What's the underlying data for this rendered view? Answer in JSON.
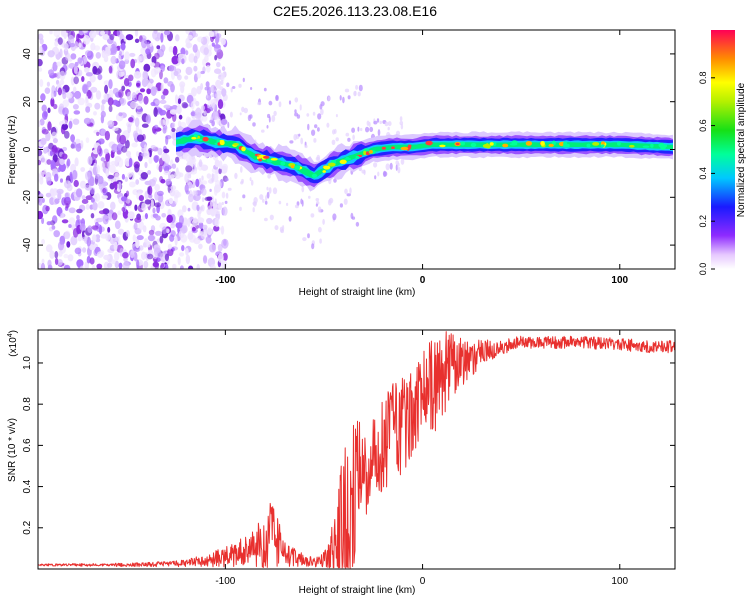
{
  "title": "C2E5.2026.113.23.08.E16",
  "chart_data": [
    {
      "type": "heatmap",
      "name": "spectrogram",
      "xlabel": "Height of straight line (km)",
      "ylabel": "Frequency (Hz)",
      "xlim": [
        -195,
        128
      ],
      "ylim": [
        -50,
        50
      ],
      "xticks": [
        -100,
        0,
        100
      ],
      "xtick_labels": [
        "-100",
        "0",
        "100"
      ],
      "yticks": [
        -40,
        -20,
        0,
        20,
        40
      ],
      "ytick_labels": [
        "-40",
        "-20",
        "0",
        "20",
        "40"
      ],
      "signal_track": {
        "x": [
          -125,
          -115,
          -105,
          -95,
          -85,
          -75,
          -65,
          -55,
          -45,
          -35,
          -25,
          -15,
          -5,
          5,
          20,
          40,
          60,
          80,
          100,
          128
        ],
        "frequency": [
          3,
          5,
          3,
          2,
          -3,
          -5,
          -7,
          -11,
          -6,
          -3,
          0,
          1,
          1,
          2,
          2,
          2,
          2,
          2,
          2,
          1
        ]
      },
      "noise_region_x": [
        -195,
        -112
      ],
      "colorbar": {
        "label": "Normalized spectral amplitude",
        "range": [
          0,
          1
        ],
        "ticks": [
          0.0,
          0.2,
          0.4,
          0.6,
          0.8
        ],
        "tick_labels": [
          "0.0",
          "0.2",
          "0.4",
          "0.6",
          "0.8"
        ]
      }
    },
    {
      "type": "line",
      "name": "snr",
      "xlabel": "Height of straight line (km)",
      "ylabel": "SNR (10 * v/v)",
      "scale_label": "(x10",
      "scale_exponent": "4",
      "xlim": [
        -195,
        128
      ],
      "ylim": [
        0,
        1.16
      ],
      "xticks": [
        -100,
        0,
        100
      ],
      "xtick_labels": [
        "-100",
        "0",
        "100"
      ],
      "yticks": [
        0.2,
        0.4,
        0.6,
        0.8,
        1.0
      ],
      "ytick_labels": [
        "0.2",
        "0.4",
        "0.6",
        "0.8",
        "1.0"
      ],
      "series_color": "#e8302e",
      "envelope": {
        "x": [
          -195,
          -150,
          -125,
          -110,
          -95,
          -85,
          -78,
          -74,
          -70,
          -60,
          -52,
          -48,
          -44,
          -40,
          -36,
          -32,
          -28,
          -24,
          -20,
          -16,
          -12,
          -8,
          -4,
          0,
          6,
          12,
          20,
          30,
          40,
          50,
          60,
          80,
          100,
          115,
          128
        ],
        "base": [
          0.02,
          0.02,
          0.025,
          0.04,
          0.07,
          0.1,
          0.14,
          0.12,
          0.07,
          0.04,
          0.03,
          0.05,
          0.08,
          0.15,
          0.3,
          0.42,
          0.48,
          0.55,
          0.6,
          0.65,
          0.68,
          0.72,
          0.78,
          0.85,
          0.9,
          0.95,
          1.0,
          1.05,
          1.08,
          1.1,
          1.1,
          1.1,
          1.09,
          1.08,
          1.08
        ],
        "amplitude": [
          0.005,
          0.008,
          0.015,
          0.03,
          0.06,
          0.09,
          0.2,
          0.15,
          0.06,
          0.03,
          0.03,
          0.06,
          0.25,
          0.45,
          0.45,
          0.3,
          0.22,
          0.2,
          0.22,
          0.24,
          0.25,
          0.22,
          0.22,
          0.22,
          0.24,
          0.22,
          0.12,
          0.06,
          0.04,
          0.03,
          0.03,
          0.03,
          0.03,
          0.03,
          0.03
        ]
      }
    }
  ]
}
